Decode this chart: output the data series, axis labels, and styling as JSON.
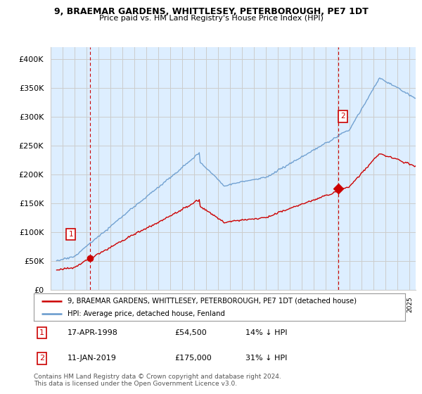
{
  "title": "9, BRAEMAR GARDENS, WHITTLESEY, PETERBOROUGH, PE7 1DT",
  "subtitle": "Price paid vs. HM Land Registry's House Price Index (HPI)",
  "ylabel_ticks": [
    "£0",
    "£50K",
    "£100K",
    "£150K",
    "£200K",
    "£250K",
    "£300K",
    "£350K",
    "£400K"
  ],
  "ytick_values": [
    0,
    50000,
    100000,
    150000,
    200000,
    250000,
    300000,
    350000,
    400000
  ],
  "ylim": [
    0,
    420000
  ],
  "xlim_start": 1995.5,
  "xlim_end": 2025.5,
  "sale1_date": 1998.29,
  "sale1_price": 54500,
  "sale2_date": 2019.04,
  "sale2_price": 175000,
  "red_color": "#cc0000",
  "blue_color": "#6699cc",
  "bg_fill_color": "#ddeeff",
  "legend_line1": "9, BRAEMAR GARDENS, WHITTLESEY, PETERBOROUGH, PE7 1DT (detached house)",
  "legend_line2": "HPI: Average price, detached house, Fenland",
  "footnote": "Contains HM Land Registry data © Crown copyright and database right 2024.\nThis data is licensed under the Open Government Licence v3.0.",
  "background_color": "#ffffff",
  "grid_color": "#cccccc",
  "sale2_marker": "diamond"
}
